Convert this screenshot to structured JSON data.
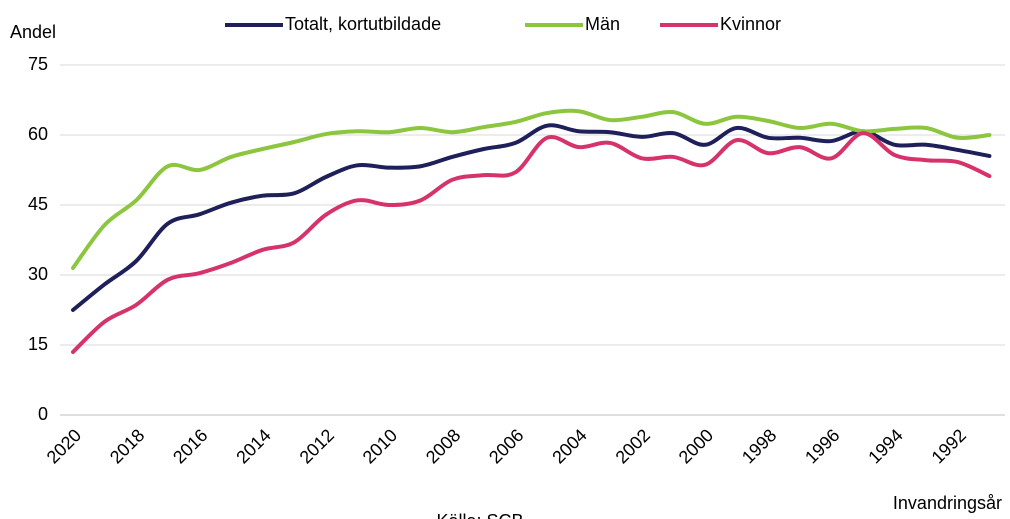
{
  "chart_data": {
    "type": "line",
    "y_label": "Andel",
    "x_label": "Invandringsår",
    "source": "Källa: SCB",
    "categories": [
      "2020",
      null,
      "2018",
      null,
      "2016",
      null,
      "2014",
      null,
      "2012",
      null,
      "2010",
      null,
      "2008",
      null,
      "2006",
      null,
      "2004",
      null,
      "2002",
      null,
      "2000",
      null,
      "1998",
      null,
      "1996",
      null,
      "1994",
      null,
      "1992",
      null
    ],
    "series": [
      {
        "name": "Totalt, kortutbildade",
        "color": "#1f1f5a",
        "values": [
          22.5,
          28,
          33,
          41,
          43,
          45.5,
          47,
          47.5,
          51,
          53.5,
          53,
          53.3,
          55.3,
          57,
          58.3,
          62,
          60.8,
          60.6,
          59.6,
          60.4,
          57.9,
          61.5,
          59.4,
          59.4,
          58.7,
          60.8,
          57.9,
          57.9,
          56.8,
          55.5
        ]
      },
      {
        "name": "Män",
        "color": "#8cc63f",
        "values": [
          31.5,
          40.7,
          46,
          53.3,
          52.5,
          55.3,
          57,
          58.5,
          60.2,
          60.8,
          60.6,
          61.5,
          60.6,
          61.7,
          62.8,
          64.7,
          65.1,
          63.2,
          63.9,
          64.9,
          62.4,
          63.9,
          63,
          61.5,
          62.4,
          60.8,
          61.3,
          61.5,
          59.4,
          60
        ]
      },
      {
        "name": "Kvinnor",
        "color": "#d6336c",
        "values": [
          13.5,
          20,
          23.6,
          29,
          30.4,
          32.6,
          35.4,
          37,
          42.9,
          46,
          45,
          46,
          50.4,
          51.4,
          52,
          59.4,
          57.4,
          58.3,
          55,
          55.3,
          53.6,
          58.9,
          56.1,
          57.4,
          55,
          60.4,
          55.7,
          54.6,
          54.2,
          51.2
        ]
      }
    ],
    "ylim": [
      0,
      75
    ],
    "yticks": [
      0,
      15,
      30,
      45,
      60,
      75
    ],
    "grid": true,
    "legend": "top"
  }
}
